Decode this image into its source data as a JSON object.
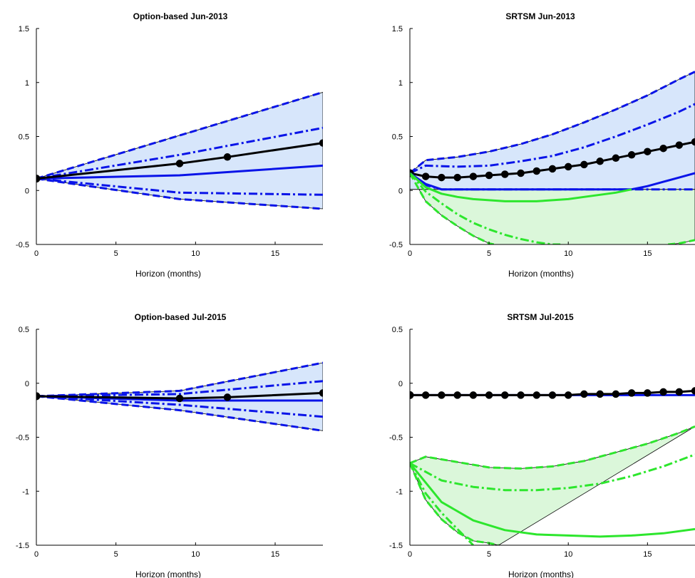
{
  "chart_data": [
    {
      "type": "line",
      "title": "Option-based Jun-2013",
      "xlabel": "Horizon (months)",
      "ylabel": "",
      "xlim": [
        0,
        18
      ],
      "ylim": [
        -0.5,
        1.5
      ],
      "xticks": [
        0,
        5,
        10,
        15
      ],
      "yticks": [
        -0.5,
        0,
        0.5,
        1,
        1.5
      ],
      "xtick_labels": [
        "0",
        "5",
        "10",
        "15"
      ],
      "ytick_labels": [
        "-0.5",
        "0",
        "0.5",
        "1",
        "1.5"
      ],
      "bands": [
        {
          "color": "#d7e6fb",
          "upper": {
            "x": [
              0,
              18
            ],
            "y": [
              0.11,
              0.91
            ]
          },
          "lower": {
            "x": [
              0,
              9,
              18
            ],
            "y": [
              0.11,
              -0.08,
              -0.17
            ]
          }
        }
      ],
      "series": [
        {
          "color": "#0a14e8",
          "style": "dash",
          "x": [
            0,
            18
          ],
          "y": [
            0.11,
            0.91
          ]
        },
        {
          "color": "#0a14e8",
          "style": "dashdot",
          "x": [
            0,
            9,
            18
          ],
          "y": [
            0.11,
            0.33,
            0.58
          ]
        },
        {
          "color": "#0a14e8",
          "style": "solid",
          "x": [
            0,
            9,
            18
          ],
          "y": [
            0.11,
            0.14,
            0.23
          ]
        },
        {
          "color": "#0a14e8",
          "style": "dashdot",
          "x": [
            0,
            9,
            18
          ],
          "y": [
            0.11,
            -0.02,
            -0.04
          ]
        },
        {
          "color": "#0a14e8",
          "style": "dash",
          "x": [
            0,
            9,
            18
          ],
          "y": [
            0.11,
            -0.08,
            -0.17
          ]
        },
        {
          "color": "#000000",
          "style": "solid",
          "markers": true,
          "x": [
            0,
            9,
            12,
            18
          ],
          "y": [
            0.11,
            0.25,
            0.31,
            0.44
          ]
        }
      ]
    },
    {
      "type": "line",
      "title": "SRTSM Jun-2013",
      "xlabel": "Horizon (months)",
      "ylabel": "",
      "xlim": [
        0,
        18
      ],
      "ylim": [
        -0.5,
        1.5
      ],
      "xticks": [
        0,
        5,
        10,
        15
      ],
      "yticks": [
        -0.5,
        0,
        0.5,
        1,
        1.5
      ],
      "xtick_labels": [
        "0",
        "5",
        "10",
        "15"
      ],
      "ytick_labels": [
        "-0.5",
        "0",
        "0.5",
        "1",
        "1.5"
      ],
      "bands": [
        {
          "color": "#dbf7da",
          "upper": {
            "x": [
              0,
              18
            ],
            "y": [
              0.01,
              0.01
            ]
          },
          "lower": {
            "x": [
              0,
              1,
              2,
              3,
              4,
              5,
              5.3,
              16.3,
              17,
              18
            ],
            "y": [
              0.16,
              -0.1,
              -0.23,
              -0.33,
              -0.42,
              -0.49,
              -0.5,
              -0.5,
              -0.49,
              -0.46
            ]
          }
        },
        {
          "color": "#d7e6fb",
          "upper": {
            "x": [
              0,
              1,
              3,
              5,
              7,
              9,
              11,
              13,
              15,
              17,
              18
            ],
            "y": [
              0.16,
              0.28,
              0.31,
              0.36,
              0.43,
              0.52,
              0.63,
              0.75,
              0.88,
              1.03,
              1.1
            ]
          },
          "lower": {
            "x": [
              0,
              18
            ],
            "y": [
              0.01,
              0.01
            ]
          }
        }
      ],
      "series": [
        {
          "color": "#0a14e8",
          "style": "dash",
          "x": [
            0,
            1,
            3,
            5,
            7,
            9,
            11,
            13,
            15,
            17,
            18
          ],
          "y": [
            0.16,
            0.28,
            0.31,
            0.36,
            0.43,
            0.52,
            0.63,
            0.75,
            0.88,
            1.03,
            1.1
          ]
        },
        {
          "color": "#0a14e8",
          "style": "dashdot",
          "x": [
            0,
            1,
            3,
            5,
            7,
            9,
            11,
            13,
            15,
            17,
            18
          ],
          "y": [
            0.16,
            0.23,
            0.22,
            0.23,
            0.27,
            0.32,
            0.4,
            0.5,
            0.61,
            0.73,
            0.8
          ]
        },
        {
          "color": "#000000",
          "style": "solid",
          "markers": true,
          "x": [
            0,
            1,
            2,
            3,
            4,
            5,
            6,
            7,
            8,
            9,
            10,
            11,
            12,
            13,
            14,
            15,
            16,
            17,
            18
          ],
          "y": [
            0.16,
            0.13,
            0.12,
            0.12,
            0.13,
            0.14,
            0.15,
            0.16,
            0.18,
            0.2,
            0.22,
            0.24,
            0.27,
            0.3,
            0.33,
            0.36,
            0.39,
            0.42,
            0.45
          ]
        },
        {
          "color": "#0a14e8",
          "style": "solid",
          "x": [
            0,
            1,
            2,
            14,
            15,
            16,
            17,
            18
          ],
          "y": [
            0.16,
            0.06,
            0.01,
            0.01,
            0.04,
            0.08,
            0.12,
            0.16
          ]
        },
        {
          "color": "#0a14e8",
          "style": "dashdot",
          "x": [
            0,
            1,
            2,
            18
          ],
          "y": [
            0.16,
            0.05,
            0.01,
            0.01
          ]
        },
        {
          "color": "#2de62d",
          "style": "solid",
          "x": [
            0,
            1,
            2,
            3,
            4,
            5,
            6,
            7,
            8,
            9,
            10,
            11,
            12,
            13,
            14
          ],
          "y": [
            0.16,
            0.03,
            -0.03,
            -0.06,
            -0.08,
            -0.09,
            -0.1,
            -0.1,
            -0.1,
            -0.09,
            -0.08,
            -0.06,
            -0.04,
            -0.02,
            0.01
          ]
        },
        {
          "color": "#2de62d",
          "style": "dashdot",
          "x": [
            0,
            1,
            2,
            3,
            4,
            5,
            6,
            7,
            8,
            9,
            9.5
          ],
          "y": [
            0.16,
            -0.01,
            -0.12,
            -0.22,
            -0.3,
            -0.36,
            -0.41,
            -0.45,
            -0.48,
            -0.5,
            -0.5
          ]
        },
        {
          "color": "#2de62d",
          "style": "dash",
          "x": [
            0,
            1,
            2,
            3,
            4,
            5,
            5.3
          ],
          "y": [
            0.16,
            -0.1,
            -0.23,
            -0.33,
            -0.42,
            -0.49,
            -0.5
          ]
        },
        {
          "color": "#2de62d",
          "style": "dash",
          "x": [
            16.3,
            17,
            18
          ],
          "y": [
            -0.5,
            -0.49,
            -0.46
          ]
        }
      ]
    },
    {
      "type": "line",
      "title": "Option-based Jul-2015",
      "xlabel": "Horizon (months)",
      "ylabel": "",
      "xlim": [
        0,
        18
      ],
      "ylim": [
        -1.5,
        0.5
      ],
      "xticks": [
        0,
        5,
        10,
        15
      ],
      "yticks": [
        -1.5,
        -1,
        -0.5,
        0,
        0.5
      ],
      "xtick_labels": [
        "0",
        "5",
        "10",
        "15"
      ],
      "ytick_labels": [
        "-1.5",
        "-1",
        "-0.5",
        "0",
        "0.5"
      ],
      "bands": [
        {
          "color": "#d7e6fb",
          "upper": {
            "x": [
              0,
              9,
              18
            ],
            "y": [
              -0.12,
              -0.07,
              0.19
            ]
          },
          "lower": {
            "x": [
              0,
              9,
              18
            ],
            "y": [
              -0.12,
              -0.25,
              -0.44
            ]
          }
        }
      ],
      "series": [
        {
          "color": "#0a14e8",
          "style": "dash",
          "x": [
            0,
            9,
            18
          ],
          "y": [
            -0.12,
            -0.07,
            0.19
          ]
        },
        {
          "color": "#0a14e8",
          "style": "dashdot",
          "x": [
            0,
            9,
            18
          ],
          "y": [
            -0.12,
            -0.1,
            0.02
          ]
        },
        {
          "color": "#0a14e8",
          "style": "solid",
          "x": [
            0,
            9,
            18
          ],
          "y": [
            -0.12,
            -0.16,
            -0.16
          ]
        },
        {
          "color": "#0a14e8",
          "style": "dashdot",
          "x": [
            0,
            9,
            18
          ],
          "y": [
            -0.12,
            -0.2,
            -0.31
          ]
        },
        {
          "color": "#0a14e8",
          "style": "dash",
          "x": [
            0,
            9,
            18
          ],
          "y": [
            -0.12,
            -0.25,
            -0.44
          ]
        },
        {
          "color": "#000000",
          "style": "solid",
          "markers": true,
          "x": [
            0,
            9,
            12,
            18
          ],
          "y": [
            -0.12,
            -0.14,
            -0.13,
            -0.09
          ]
        }
      ]
    },
    {
      "type": "line",
      "title": "SRTSM Jul-2015",
      "xlabel": "Horizon (months)",
      "ylabel": "",
      "xlim": [
        0,
        18
      ],
      "ylim": [
        -1.5,
        0.5
      ],
      "xticks": [
        0,
        5,
        10,
        15
      ],
      "yticks": [
        -1.5,
        -1,
        -0.5,
        0,
        0.5
      ],
      "xtick_labels": [
        "0",
        "5",
        "10",
        "15"
      ],
      "ytick_labels": [
        "-1.5",
        "-1",
        "-0.5",
        "0",
        "0.5"
      ],
      "bands": [
        {
          "color": "#dbf7da",
          "upper": {
            "x": [
              0,
              1,
              3,
              5,
              7,
              9,
              11,
              13,
              15,
              17,
              18
            ],
            "y": [
              -0.74,
              -0.68,
              -0.73,
              -0.78,
              -0.79,
              -0.77,
              -0.72,
              -0.64,
              -0.56,
              -0.46,
              -0.4
            ]
          },
          "lower": {
            "x": [
              0,
              1,
              2,
              3,
              4,
              5,
              5.6
            ],
            "y": [
              -0.74,
              -1.08,
              -1.26,
              -1.38,
              -1.46,
              -1.48,
              -1.5
            ]
          }
        }
      ],
      "series": [
        {
          "color": "#0a14e8",
          "style": "solid",
          "x": [
            0,
            18
          ],
          "y": [
            -0.11,
            -0.11
          ]
        },
        {
          "color": "#000000",
          "style": "solid",
          "markers": true,
          "x": [
            0,
            1,
            2,
            3,
            4,
            5,
            6,
            7,
            8,
            9,
            10,
            11,
            12,
            13,
            14,
            15,
            16,
            17,
            18
          ],
          "y": [
            -0.11,
            -0.11,
            -0.11,
            -0.11,
            -0.11,
            -0.11,
            -0.11,
            -0.11,
            -0.11,
            -0.11,
            -0.11,
            -0.1,
            -0.1,
            -0.1,
            -0.09,
            -0.09,
            -0.08,
            -0.08,
            -0.07
          ]
        },
        {
          "color": "#2de62d",
          "style": "dash",
          "x": [
            0,
            1,
            3,
            5,
            7,
            9,
            11,
            13,
            15,
            17,
            18
          ],
          "y": [
            -0.74,
            -0.68,
            -0.73,
            -0.78,
            -0.79,
            -0.77,
            -0.72,
            -0.64,
            -0.56,
            -0.46,
            -0.4
          ]
        },
        {
          "color": "#2de62d",
          "style": "dashdot",
          "x": [
            0,
            2,
            4,
            6,
            8,
            10,
            12,
            14,
            16,
            18
          ],
          "y": [
            -0.74,
            -0.9,
            -0.96,
            -0.99,
            -0.99,
            -0.97,
            -0.93,
            -0.86,
            -0.77,
            -0.66
          ]
        },
        {
          "color": "#2de62d",
          "style": "solid",
          "x": [
            0,
            2,
            4,
            6,
            8,
            10,
            12,
            14,
            16,
            18
          ],
          "y": [
            -0.74,
            -1.1,
            -1.27,
            -1.36,
            -1.4,
            -1.41,
            -1.42,
            -1.41,
            -1.39,
            -1.35
          ]
        },
        {
          "color": "#2de62d",
          "style": "dashdot",
          "x": [
            0,
            1,
            2,
            3,
            4
          ],
          "y": [
            -0.74,
            -1.02,
            -1.2,
            -1.35,
            -1.5
          ]
        },
        {
          "color": "#2de62d",
          "style": "dash",
          "x": [
            0,
            1,
            2,
            3,
            4,
            5,
            5.6
          ],
          "y": [
            -0.74,
            -1.08,
            -1.26,
            -1.38,
            -1.46,
            -1.48,
            -1.5
          ]
        }
      ]
    }
  ]
}
